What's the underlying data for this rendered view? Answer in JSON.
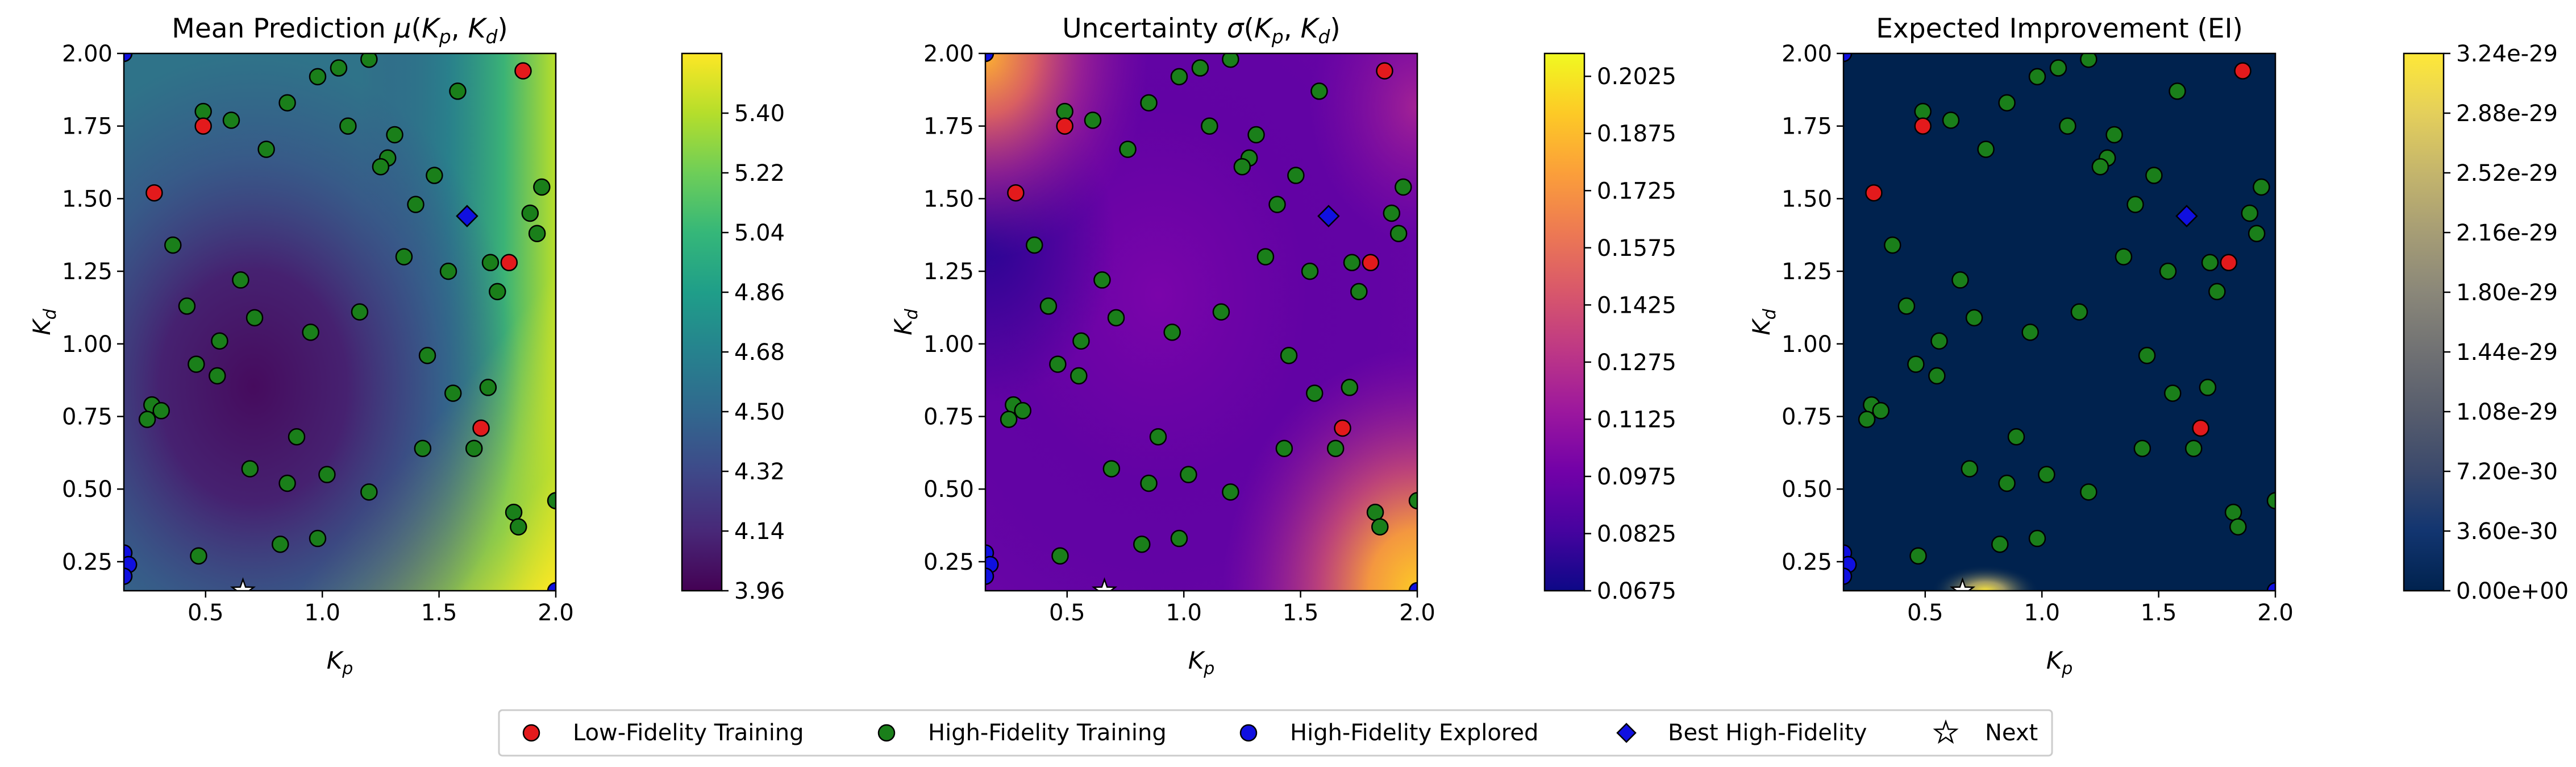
{
  "legend": {
    "items": [
      {
        "label": "Low-Fidelity Training",
        "marker": "circle",
        "color": "#e31a1c"
      },
      {
        "label": "High-Fidelity Training",
        "marker": "circle",
        "color": "#1a7f1a"
      },
      {
        "label": "High-Fidelity Explored",
        "marker": "circle",
        "color": "#1010e0"
      },
      {
        "label": "Best High-Fidelity",
        "marker": "diamond",
        "color": "#1010e0"
      },
      {
        "label": "Next",
        "marker": "star",
        "color": "#ffffff"
      }
    ]
  },
  "chart_data": [
    {
      "type": "heatmap",
      "title": "Mean Prediction μ(K_p, K_d)",
      "xlabel": "K_p",
      "ylabel": "K_d",
      "xlim": [
        0.15,
        2.0
      ],
      "ylim": [
        0.15,
        2.0
      ],
      "xticks": [
        0.5,
        1.0,
        1.5,
        2.0
      ],
      "xtick_labels": [
        "0.5",
        "1.0",
        "1.5",
        "2.0"
      ],
      "yticks": [
        0.25,
        0.5,
        0.75,
        1.0,
        1.25,
        1.5,
        1.75,
        2.0
      ],
      "ytick_labels": [
        "0.25",
        "0.50",
        "0.75",
        "1.00",
        "1.25",
        "1.50",
        "1.75",
        "2.00"
      ],
      "colormap": "viridis",
      "colorbar": {
        "min": 3.96,
        "max": 5.58,
        "ticks": [
          3.96,
          4.14,
          4.32,
          4.5,
          4.68,
          4.86,
          5.04,
          5.22,
          5.4
        ],
        "tick_labels": [
          "3.96",
          "4.14",
          "4.32",
          "4.50",
          "4.68",
          "4.86",
          "5.04",
          "5.22",
          "5.40"
        ]
      }
    },
    {
      "type": "heatmap",
      "title": "Uncertainty σ(K_p, K_d)",
      "xlabel": "K_p",
      "ylabel": "K_d",
      "xlim": [
        0.15,
        2.0
      ],
      "ylim": [
        0.15,
        2.0
      ],
      "xticks": [
        0.5,
        1.0,
        1.5,
        2.0
      ],
      "xtick_labels": [
        "0.5",
        "1.0",
        "1.5",
        "2.0"
      ],
      "yticks": [
        0.25,
        0.5,
        0.75,
        1.0,
        1.25,
        1.5,
        1.75,
        2.0
      ],
      "ytick_labels": [
        "0.25",
        "0.50",
        "0.75",
        "1.00",
        "1.25",
        "1.50",
        "1.75",
        "2.00"
      ],
      "colormap": "plasma",
      "colorbar": {
        "min": 0.0675,
        "max": 0.2085,
        "ticks": [
          0.0675,
          0.0825,
          0.0975,
          0.1125,
          0.1275,
          0.1425,
          0.1575,
          0.1725,
          0.1875,
          0.2025
        ],
        "tick_labels": [
          "0.0675",
          "0.0825",
          "0.0975",
          "0.1125",
          "0.1275",
          "0.1425",
          "0.1575",
          "0.1725",
          "0.1875",
          "0.2025"
        ]
      }
    },
    {
      "type": "heatmap",
      "title": "Expected Improvement (EI)",
      "xlabel": "K_p",
      "ylabel": "K_d",
      "xlim": [
        0.15,
        2.0
      ],
      "ylim": [
        0.15,
        2.0
      ],
      "xticks": [
        0.5,
        1.0,
        1.5,
        2.0
      ],
      "xtick_labels": [
        "0.5",
        "1.0",
        "1.5",
        "2.0"
      ],
      "yticks": [
        0.25,
        0.5,
        0.75,
        1.0,
        1.25,
        1.5,
        1.75,
        2.0
      ],
      "ytick_labels": [
        "0.25",
        "0.50",
        "0.75",
        "1.00",
        "1.25",
        "1.50",
        "1.75",
        "2.00"
      ],
      "colormap": "cividis",
      "colorbar": {
        "min": 0.0,
        "max": 3.24e-29,
        "ticks": [
          0,
          3.6e-30,
          7.2e-30,
          1.08e-29,
          1.44e-29,
          1.8e-29,
          2.16e-29,
          2.52e-29,
          2.88e-29,
          3.24e-29
        ],
        "tick_labels": [
          "0.00e+00",
          "3.60e-30",
          "7.20e-30",
          "1.08e-29",
          "1.44e-29",
          "1.80e-29",
          "2.16e-29",
          "2.52e-29",
          "2.88e-29",
          "3.24e-29"
        ]
      }
    }
  ],
  "points": {
    "low_fidelity_training": [
      [
        0.28,
        1.52
      ],
      [
        0.49,
        1.75
      ],
      [
        1.86,
        1.94
      ],
      [
        1.8,
        1.28
      ],
      [
        1.68,
        0.71
      ]
    ],
    "high_fidelity_training": [
      [
        0.49,
        1.8
      ],
      [
        0.61,
        1.77
      ],
      [
        0.85,
        1.83
      ],
      [
        0.98,
        1.92
      ],
      [
        1.07,
        1.95
      ],
      [
        1.2,
        1.98
      ],
      [
        0.76,
        1.67
      ],
      [
        1.11,
        1.75
      ],
      [
        1.31,
        1.72
      ],
      [
        1.28,
        1.64
      ],
      [
        1.25,
        1.61
      ],
      [
        1.4,
        1.48
      ],
      [
        1.48,
        1.58
      ],
      [
        1.58,
        1.87
      ],
      [
        1.35,
        1.3
      ],
      [
        1.54,
        1.25
      ],
      [
        1.72,
        1.28
      ],
      [
        1.75,
        1.18
      ],
      [
        1.89,
        1.45
      ],
      [
        1.92,
        1.38
      ],
      [
        1.94,
        1.54
      ],
      [
        0.36,
        1.34
      ],
      [
        0.65,
        1.22
      ],
      [
        0.42,
        1.13
      ],
      [
        0.71,
        1.09
      ],
      [
        1.16,
        1.11
      ],
      [
        0.95,
        1.04
      ],
      [
        0.56,
        1.01
      ],
      [
        0.46,
        0.93
      ],
      [
        0.55,
        0.89
      ],
      [
        1.45,
        0.96
      ],
      [
        1.71,
        0.85
      ],
      [
        1.56,
        0.83
      ],
      [
        0.27,
        0.79
      ],
      [
        0.31,
        0.77
      ],
      [
        0.25,
        0.74
      ],
      [
        0.89,
        0.68
      ],
      [
        1.43,
        0.64
      ],
      [
        1.65,
        0.64
      ],
      [
        0.69,
        0.57
      ],
      [
        0.85,
        0.52
      ],
      [
        1.02,
        0.55
      ],
      [
        1.2,
        0.49
      ],
      [
        1.82,
        0.42
      ],
      [
        1.84,
        0.37
      ],
      [
        0.82,
        0.31
      ],
      [
        0.98,
        0.33
      ],
      [
        0.47,
        0.27
      ],
      [
        2.0,
        0.46
      ]
    ],
    "high_fidelity_explored": [
      [
        0.15,
        0.28
      ],
      [
        0.17,
        0.24
      ],
      [
        0.15,
        0.2
      ],
      [
        0.15,
        2.0
      ],
      [
        2.0,
        0.15
      ]
    ],
    "best_high_fidelity": [
      [
        1.62,
        1.44
      ]
    ],
    "next": [
      [
        0.66,
        0.15
      ]
    ]
  }
}
